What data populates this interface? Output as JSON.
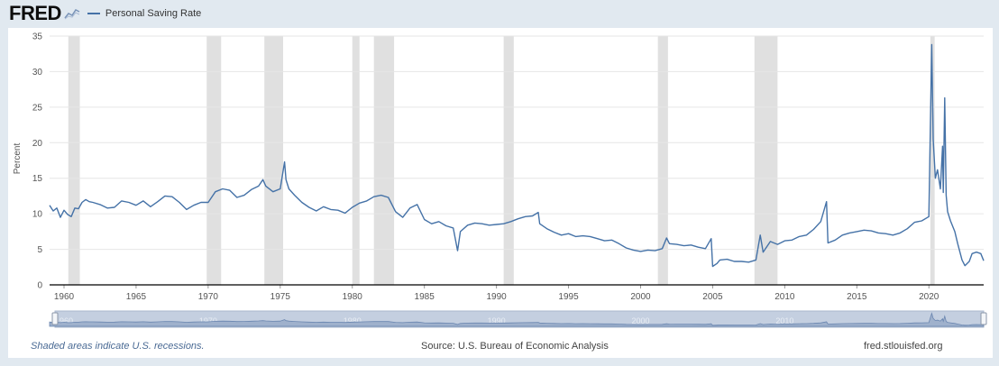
{
  "header": {
    "logo": "FRED",
    "logo_icon": "chart-line-icon",
    "legend_label": "Personal Saving Rate"
  },
  "footer": {
    "note": "Shaded areas indicate U.S. recessions.",
    "source": "Source: U.S. Bureau of Economic Analysis",
    "site": "fred.stlouisfed.org"
  },
  "colors": {
    "line": "#4572a7",
    "recession": "#e0e0e0",
    "background": "#e1e9f0",
    "plot": "#ffffff",
    "navigator": "#c4cfe0"
  },
  "chart_data": {
    "type": "line",
    "title": "",
    "xlabel": "",
    "ylabel": "Percent",
    "xlim": [
      1959.0,
      2023.8
    ],
    "ylim": [
      0,
      35
    ],
    "y_ticks": [
      0,
      5,
      10,
      15,
      20,
      25,
      30,
      35
    ],
    "x_ticks": [
      1960,
      1965,
      1970,
      1975,
      1980,
      1985,
      1990,
      1995,
      2000,
      2005,
      2010,
      2015,
      2020
    ],
    "navigator_ticks": [
      1960,
      1970,
      1980,
      1990,
      2000,
      2010
    ],
    "grid": true,
    "recessions": [
      [
        1960.3,
        1961.1
      ],
      [
        1969.9,
        1970.9
      ],
      [
        1973.9,
        1975.2
      ],
      [
        1980.0,
        1980.5
      ],
      [
        1981.5,
        1982.9
      ],
      [
        1990.5,
        1991.2
      ],
      [
        2001.2,
        2001.9
      ],
      [
        2007.9,
        2009.5
      ],
      [
        2020.1,
        2020.4
      ]
    ],
    "series": [
      {
        "name": "Personal Saving Rate",
        "x": [
          1959.0,
          1959.25,
          1959.5,
          1959.75,
          1960.0,
          1960.25,
          1960.5,
          1960.75,
          1961.0,
          1961.25,
          1961.5,
          1961.75,
          1962.0,
          1962.5,
          1963.0,
          1963.5,
          1964.0,
          1964.5,
          1965.0,
          1965.5,
          1966.0,
          1966.5,
          1967.0,
          1967.5,
          1968.0,
          1968.5,
          1969.0,
          1969.5,
          1970.0,
          1970.5,
          1971.0,
          1971.5,
          1972.0,
          1972.5,
          1973.0,
          1973.5,
          1973.8,
          1974.0,
          1974.5,
          1975.0,
          1975.3,
          1975.4,
          1975.6,
          1976.0,
          1976.5,
          1977.0,
          1977.5,
          1978.0,
          1978.5,
          1979.0,
          1979.5,
          1980.0,
          1980.5,
          1981.0,
          1981.5,
          1982.0,
          1982.5,
          1983.0,
          1983.5,
          1984.0,
          1984.5,
          1985.0,
          1985.5,
          1986.0,
          1986.5,
          1987.0,
          1987.3,
          1987.5,
          1988.0,
          1988.5,
          1989.0,
          1989.5,
          1990.0,
          1990.5,
          1991.0,
          1991.5,
          1992.0,
          1992.5,
          1992.9,
          1993.0,
          1993.5,
          1994.0,
          1994.5,
          1995.0,
          1995.5,
          1996.0,
          1996.5,
          1997.0,
          1997.5,
          1998.0,
          1998.5,
          1999.0,
          1999.5,
          2000.0,
          2000.5,
          2001.0,
          2001.5,
          2001.8,
          2002.0,
          2002.5,
          2003.0,
          2003.5,
          2004.0,
          2004.5,
          2004.9,
          2005.0,
          2005.3,
          2005.5,
          2006.0,
          2006.5,
          2007.0,
          2007.5,
          2008.0,
          2008.3,
          2008.5,
          2009.0,
          2009.5,
          2010.0,
          2010.5,
          2011.0,
          2011.5,
          2012.0,
          2012.5,
          2012.9,
          2013.0,
          2013.5,
          2014.0,
          2014.5,
          2015.0,
          2015.5,
          2016.0,
          2016.5,
          2017.0,
          2017.5,
          2018.0,
          2018.5,
          2019.0,
          2019.5,
          2020.0,
          2020.2,
          2020.3,
          2020.45,
          2020.6,
          2020.8,
          2020.95,
          2021.0,
          2021.1,
          2021.2,
          2021.3,
          2021.5,
          2021.8,
          2022.0,
          2022.3,
          2022.5,
          2022.8,
          2023.0,
          2023.3,
          2023.6,
          2023.8
        ],
        "values": [
          11.2,
          10.4,
          10.8,
          9.5,
          10.5,
          9.9,
          9.6,
          10.8,
          10.7,
          11.6,
          12.0,
          11.7,
          11.6,
          11.3,
          10.8,
          10.9,
          11.8,
          11.6,
          11.2,
          11.8,
          11.0,
          11.7,
          12.5,
          12.4,
          11.6,
          10.6,
          11.2,
          11.6,
          11.6,
          13.1,
          13.5,
          13.3,
          12.3,
          12.6,
          13.4,
          13.9,
          14.8,
          13.9,
          13.1,
          13.5,
          17.3,
          14.8,
          13.5,
          12.6,
          11.6,
          10.9,
          10.4,
          11.0,
          10.6,
          10.5,
          10.1,
          10.9,
          11.5,
          11.8,
          12.4,
          12.6,
          12.3,
          10.3,
          9.5,
          10.8,
          11.3,
          9.2,
          8.6,
          8.9,
          8.3,
          8.0,
          4.8,
          7.5,
          8.4,
          8.7,
          8.6,
          8.4,
          8.5,
          8.6,
          8.9,
          9.3,
          9.6,
          9.7,
          10.2,
          8.6,
          7.9,
          7.4,
          7.0,
          7.2,
          6.8,
          6.9,
          6.8,
          6.5,
          6.2,
          6.3,
          5.8,
          5.2,
          4.9,
          4.7,
          4.9,
          4.8,
          5.1,
          6.6,
          5.8,
          5.7,
          5.5,
          5.6,
          5.3,
          5.1,
          6.5,
          2.6,
          3.0,
          3.5,
          3.6,
          3.3,
          3.3,
          3.2,
          3.5,
          7.0,
          4.6,
          6.1,
          5.7,
          6.2,
          6.3,
          6.8,
          7.0,
          7.8,
          8.9,
          11.7,
          5.9,
          6.3,
          7.0,
          7.3,
          7.5,
          7.7,
          7.6,
          7.3,
          7.2,
          7.0,
          7.3,
          7.9,
          8.8,
          9.0,
          9.6,
          33.8,
          20.5,
          15.0,
          16.2,
          13.5,
          19.5,
          13.0,
          26.3,
          12.6,
          10.3,
          9.0,
          7.5,
          5.8,
          3.5,
          2.7,
          3.3,
          4.4,
          4.6,
          4.4,
          3.4
        ]
      }
    ]
  }
}
